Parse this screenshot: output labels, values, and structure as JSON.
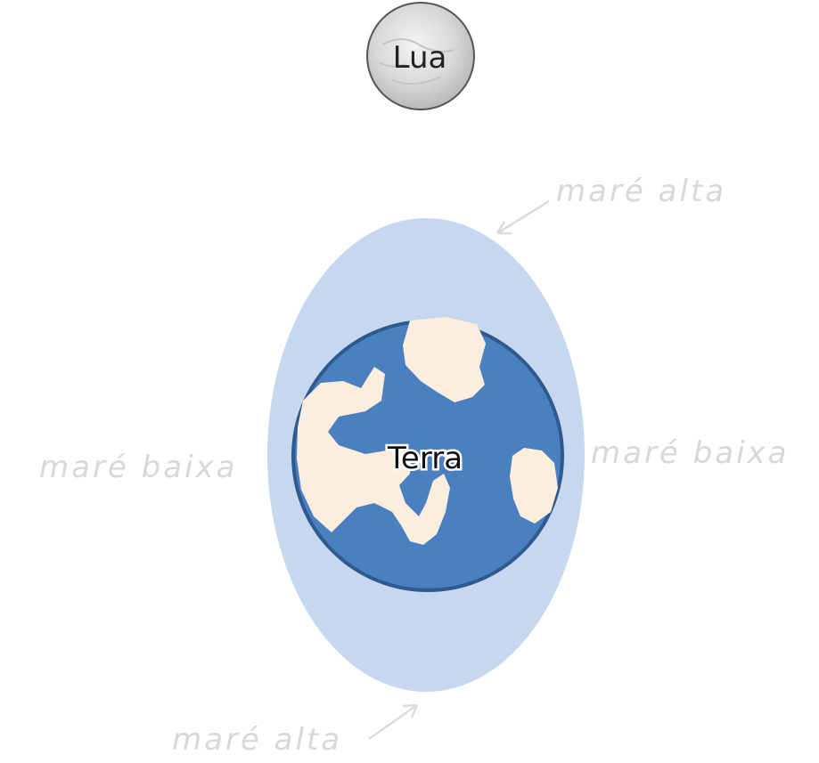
{
  "moon": {
    "label": "Lua"
  },
  "earth": {
    "label": "Terra"
  },
  "tides": {
    "high_top": "maré alta",
    "high_bottom": "maré alta",
    "low_left": "maré baixa",
    "low_right": "maré baixa"
  },
  "colors": {
    "tidal_bulge": "#c6d7f0",
    "ocean": "#4a7fc0",
    "ocean_edge": "#2f5a8f",
    "land": "#fbeedd",
    "moon": "#d6d6d6",
    "annotation": "#d8d8d8"
  }
}
